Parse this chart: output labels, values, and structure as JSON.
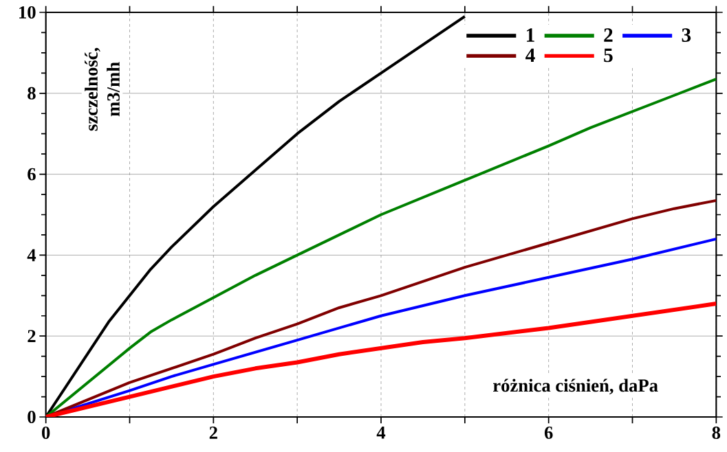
{
  "chart_data": {
    "type": "line",
    "xlabel": "różnica ciśnień, daPa",
    "ylabel": "szczelność, m3/mh",
    "xlim": [
      0,
      8
    ],
    "ylim": [
      0,
      10
    ],
    "xticks": [
      0,
      {
        "value": 1,
        "label": null
      },
      2,
      {
        "value": 3,
        "label": null
      },
      4,
      {
        "value": 5,
        "label": null
      },
      6,
      {
        "value": 7,
        "label": null
      },
      8
    ],
    "yticks": [
      0,
      2,
      4,
      6,
      8,
      10
    ],
    "grid": true,
    "legend": "top right",
    "marker": "none",
    "line_style": "solid",
    "series": [
      {
        "name": "1",
        "color": "#000000",
        "x": [
          0,
          0.75,
          1,
          1.25,
          1.5,
          2,
          2.5,
          3,
          3.5,
          4,
          4.5,
          5
        ],
        "values": [
          0,
          2.35,
          3.0,
          3.65,
          4.2,
          5.2,
          6.1,
          7.0,
          7.8,
          8.5,
          9.2,
          9.9
        ]
      },
      {
        "name": "2",
        "color": "#008000",
        "x": [
          0,
          1,
          1.25,
          1.5,
          2,
          2.5,
          3,
          4,
          5,
          6,
          6.5,
          7,
          7.5,
          8
        ],
        "values": [
          0,
          1.7,
          2.1,
          2.4,
          2.95,
          3.5,
          4.0,
          5.0,
          5.85,
          6.7,
          7.15,
          7.55,
          7.95,
          8.35
        ]
      },
      {
        "name": "3",
        "color": "#0000ff",
        "x": [
          0,
          1,
          1.5,
          2,
          3,
          4,
          5,
          6,
          7,
          8
        ],
        "values": [
          0,
          0.65,
          1.0,
          1.3,
          1.9,
          2.5,
          3.0,
          3.45,
          3.9,
          4.4
        ]
      },
      {
        "name": "4",
        "color": "#800000",
        "x": [
          0,
          1,
          2,
          2.5,
          3,
          3.5,
          4,
          5,
          5.5,
          6,
          7,
          7.5,
          8
        ],
        "values": [
          0,
          0.85,
          1.55,
          1.95,
          2.3,
          2.7,
          3.0,
          3.7,
          4.0,
          4.3,
          4.9,
          5.15,
          5.35
        ]
      },
      {
        "name": "5",
        "color": "#ff0000",
        "x": [
          0,
          1,
          2,
          2.5,
          3,
          3.5,
          4,
          4.5,
          5,
          6,
          7,
          8
        ],
        "values": [
          0,
          0.5,
          1.0,
          1.2,
          1.35,
          1.55,
          1.7,
          1.85,
          1.95,
          2.2,
          2.5,
          2.8
        ]
      }
    ]
  }
}
